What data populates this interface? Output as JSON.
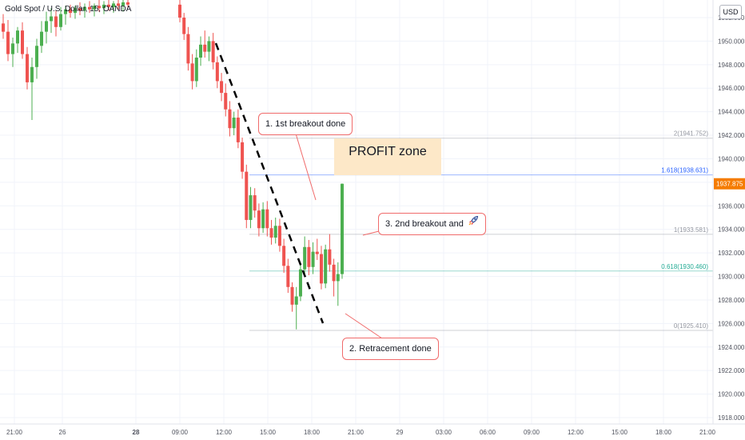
{
  "header": {
    "symbol_title": "Gold Spot / U.S. Dollar, 15, OANDA",
    "currency": "USD"
  },
  "colors": {
    "up": "#26a69a",
    "up_bright": "#4caf50",
    "down": "#ef5350",
    "grid": "#f0f3fa",
    "price_tag": "#f57c00",
    "fib_blue": "#2962ff",
    "fib_teal": "#22ab94",
    "fib_gray": "#9598a1",
    "callout_border": "#f06b6b"
  },
  "annotations": {
    "callout1": "1. 1st breakout done",
    "callout2": "2. Retracement done",
    "callout3": "3. 2nd breakout and",
    "callout3_icon": "rocket-icon",
    "profit_zone": "PROFIT zone"
  },
  "chart_data": {
    "type": "candlestick",
    "title": "Gold Spot / U.S. Dollar, 15, OANDA",
    "y_axis": {
      "ticks": [
        "1952.000",
        "1950.000",
        "1948.000",
        "1946.000",
        "1944.000",
        "1942.000",
        "1940.000",
        "1938.000",
        "1936.000",
        "1934.000",
        "1932.000",
        "1930.000",
        "1928.000",
        "1926.000",
        "1924.000",
        "1922.000",
        "1920.000",
        "1918.000"
      ],
      "range": [
        1917.5,
        1953.5
      ],
      "current_price": "1937.875"
    },
    "x_axis": {
      "ticks": [
        "21:00",
        "26",
        "28",
        "09:00",
        "12:00",
        "15:00",
        "18:00",
        "21:00",
        "29",
        "03:00",
        "06:00",
        "09:00",
        "12:00",
        "15:00",
        "18:00",
        "21:00"
      ]
    },
    "fib_levels": [
      {
        "label": "2(1941.752)",
        "value": 1941.752,
        "color": "#9598a1"
      },
      {
        "label": "1.618(1938.631)",
        "value": 1938.631,
        "color": "#2962ff"
      },
      {
        "label": "1(1933.581)",
        "value": 1933.581,
        "color": "#9598a1"
      },
      {
        "label": "0.618(1930.460)",
        "value": 1930.46,
        "color": "#22ab94"
      },
      {
        "label": "0(1925.410)",
        "value": 1925.41,
        "color": "#9598a1"
      }
    ],
    "candles": [
      {
        "o": 1951.5,
        "h": 1952.3,
        "l": 1950.2,
        "c": 1950.8
      },
      {
        "o": 1950.8,
        "h": 1951.8,
        "l": 1948.3,
        "c": 1948.9
      },
      {
        "o": 1948.9,
        "h": 1950.3,
        "l": 1947.8,
        "c": 1949.8
      },
      {
        "o": 1949.8,
        "h": 1951.2,
        "l": 1949.0,
        "c": 1950.9
      },
      {
        "o": 1950.9,
        "h": 1951.6,
        "l": 1948.5,
        "c": 1948.9
      },
      {
        "o": 1948.9,
        "h": 1949.5,
        "l": 1945.9,
        "c": 1946.5
      },
      {
        "o": 1946.5,
        "h": 1948.6,
        "l": 1943.3,
        "c": 1947.8
      },
      {
        "o": 1947.8,
        "h": 1950.2,
        "l": 1946.8,
        "c": 1949.6
      },
      {
        "o": 1949.6,
        "h": 1951.7,
        "l": 1949.0,
        "c": 1950.8
      },
      {
        "o": 1950.8,
        "h": 1952.5,
        "l": 1949.8,
        "c": 1951.7
      },
      {
        "o": 1951.7,
        "h": 1952.8,
        "l": 1950.7,
        "c": 1952.1
      },
      {
        "o": 1952.1,
        "h": 1952.6,
        "l": 1950.4,
        "c": 1951.2
      },
      {
        "o": 1951.2,
        "h": 1952.9,
        "l": 1950.9,
        "c": 1952.3
      },
      {
        "o": 1952.3,
        "h": 1953.0,
        "l": 1951.4,
        "c": 1952.7
      },
      {
        "o": 1952.7,
        "h": 1953.1,
        "l": 1952.0,
        "c": 1952.4
      },
      {
        "o": 1952.4,
        "h": 1953.0,
        "l": 1951.9,
        "c": 1952.8
      },
      {
        "o": 1952.8,
        "h": 1953.3,
        "l": 1952.2,
        "c": 1952.6
      },
      {
        "o": 1952.6,
        "h": 1953.2,
        "l": 1952.0,
        "c": 1952.9
      },
      {
        "o": 1952.9,
        "h": 1953.4,
        "l": 1952.4,
        "c": 1952.7
      },
      {
        "o": 1952.7,
        "h": 1953.2,
        "l": 1952.1,
        "c": 1953.0
      },
      {
        "o": 1953.0,
        "h": 1953.5,
        "l": 1952.5,
        "c": 1952.8
      },
      {
        "o": 1952.8,
        "h": 1953.4,
        "l": 1952.3,
        "c": 1953.1
      },
      {
        "o": 1953.1,
        "h": 1953.5,
        "l": 1952.6,
        "c": 1952.9
      },
      {
        "o": 1952.9,
        "h": 1953.4,
        "l": 1952.4,
        "c": 1953.2
      },
      {
        "o": 1953.2,
        "h": 1953.5,
        "l": 1952.7,
        "c": 1953.0
      },
      {
        "o": 1953.0,
        "h": 1953.5,
        "l": 1952.5,
        "c": 1953.3
      },
      {
        "o": 1953.3,
        "h": 1953.5,
        "l": 1952.8,
        "c": 1953.1
      },
      {
        "o": 1953.1,
        "h": 1953.5,
        "l": 1951.6,
        "c": 1952.0
      },
      {
        "o": 1952.0,
        "h": 1952.4,
        "l": 1950.1,
        "c": 1950.6
      },
      {
        "o": 1950.6,
        "h": 1951.2,
        "l": 1947.5,
        "c": 1948.1
      },
      {
        "o": 1948.1,
        "h": 1948.9,
        "l": 1945.9,
        "c": 1946.6
      },
      {
        "o": 1946.6,
        "h": 1949.3,
        "l": 1946.1,
        "c": 1948.6
      },
      {
        "o": 1948.6,
        "h": 1950.4,
        "l": 1947.9,
        "c": 1949.7
      },
      {
        "o": 1949.7,
        "h": 1950.9,
        "l": 1948.6,
        "c": 1949.1
      },
      {
        "o": 1949.1,
        "h": 1950.4,
        "l": 1948.3,
        "c": 1950.0
      },
      {
        "o": 1950.0,
        "h": 1950.7,
        "l": 1947.6,
        "c": 1948.2
      },
      {
        "o": 1948.2,
        "h": 1948.7,
        "l": 1946.0,
        "c": 1946.6
      },
      {
        "o": 1946.6,
        "h": 1947.3,
        "l": 1944.9,
        "c": 1945.6
      },
      {
        "o": 1945.6,
        "h": 1946.4,
        "l": 1943.6,
        "c": 1944.2
      },
      {
        "o": 1944.2,
        "h": 1944.9,
        "l": 1941.9,
        "c": 1942.6
      },
      {
        "o": 1942.6,
        "h": 1944.0,
        "l": 1942.0,
        "c": 1943.5
      },
      {
        "o": 1943.5,
        "h": 1944.2,
        "l": 1940.9,
        "c": 1941.4
      },
      {
        "o": 1941.4,
        "h": 1941.8,
        "l": 1938.3,
        "c": 1938.9
      },
      {
        "o": 1938.9,
        "h": 1939.5,
        "l": 1934.1,
        "c": 1934.8
      },
      {
        "o": 1934.8,
        "h": 1937.6,
        "l": 1934.1,
        "c": 1936.9
      },
      {
        "o": 1936.9,
        "h": 1937.5,
        "l": 1935.0,
        "c": 1935.6
      },
      {
        "o": 1935.6,
        "h": 1936.2,
        "l": 1933.4,
        "c": 1934.1
      },
      {
        "o": 1934.1,
        "h": 1936.3,
        "l": 1933.7,
        "c": 1935.7
      },
      {
        "o": 1935.7,
        "h": 1936.4,
        "l": 1933.4,
        "c": 1934.1
      },
      {
        "o": 1934.1,
        "h": 1934.8,
        "l": 1932.7,
        "c": 1933.3
      },
      {
        "o": 1933.3,
        "h": 1935.0,
        "l": 1932.8,
        "c": 1934.3
      },
      {
        "o": 1934.3,
        "h": 1934.9,
        "l": 1932.1,
        "c": 1932.6
      },
      {
        "o": 1932.6,
        "h": 1933.2,
        "l": 1930.3,
        "c": 1930.9
      },
      {
        "o": 1930.9,
        "h": 1931.5,
        "l": 1928.6,
        "c": 1929.1
      },
      {
        "o": 1929.1,
        "h": 1929.5,
        "l": 1927.0,
        "c": 1927.6
      },
      {
        "o": 1927.6,
        "h": 1929.1,
        "l": 1925.5,
        "c": 1928.3
      },
      {
        "o": 1928.3,
        "h": 1931.2,
        "l": 1927.9,
        "c": 1930.6
      },
      {
        "o": 1930.6,
        "h": 1933.4,
        "l": 1930.1,
        "c": 1932.5
      },
      {
        "o": 1932.5,
        "h": 1933.1,
        "l": 1930.1,
        "c": 1930.8
      },
      {
        "o": 1930.8,
        "h": 1932.9,
        "l": 1930.2,
        "c": 1932.1
      },
      {
        "o": 1932.1,
        "h": 1933.2,
        "l": 1931.4,
        "c": 1931.9
      },
      {
        "o": 1931.9,
        "h": 1932.6,
        "l": 1928.9,
        "c": 1929.4
      },
      {
        "o": 1929.4,
        "h": 1932.7,
        "l": 1929.0,
        "c": 1932.3
      },
      {
        "o": 1932.3,
        "h": 1933.6,
        "l": 1930.4,
        "c": 1931.0
      },
      {
        "o": 1931.0,
        "h": 1931.5,
        "l": 1928.3,
        "c": 1929.6
      },
      {
        "o": 1929.6,
        "h": 1931.2,
        "l": 1927.5,
        "c": 1930.2
      },
      {
        "o": 1930.2,
        "h": 1937.9,
        "l": 1929.8,
        "c": 1937.875
      }
    ]
  }
}
